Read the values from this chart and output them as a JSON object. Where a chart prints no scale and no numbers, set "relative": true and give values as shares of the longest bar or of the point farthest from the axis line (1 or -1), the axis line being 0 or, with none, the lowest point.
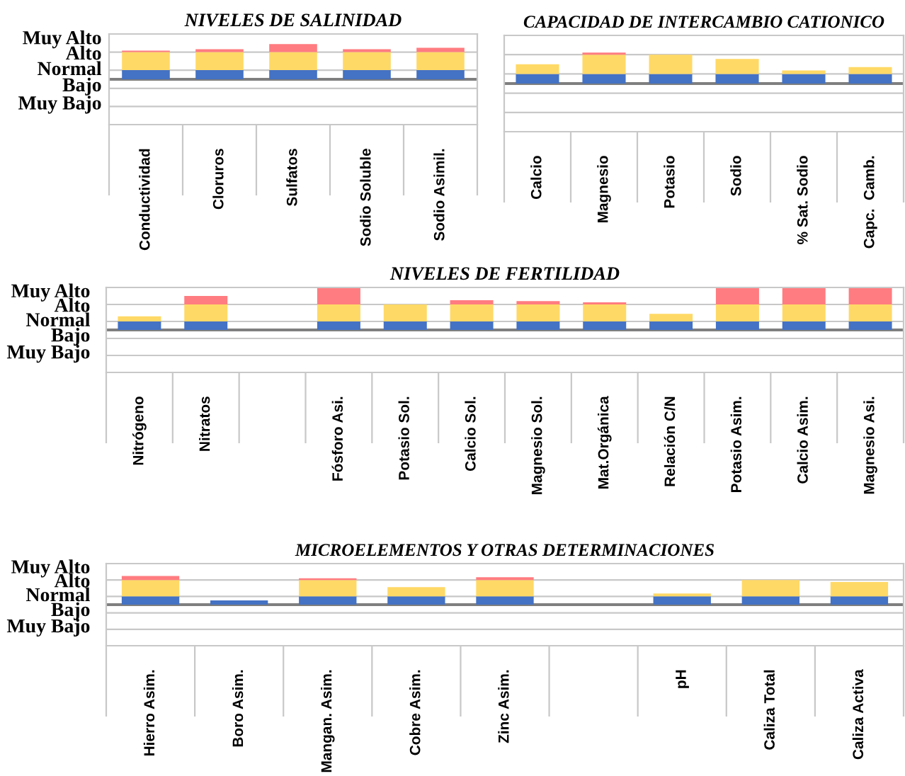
{
  "chart_data": [
    {
      "type": "bar",
      "title": "NIVELES DE SALINIDAD",
      "stacked": true,
      "relative": true,
      "annotations": [
        "Muy Alto",
        "Alto",
        "Normal",
        "Bajo",
        "Muy Bajo"
      ],
      "categories": [
        "Conductividad",
        "Cloruros",
        "Sulfatos",
        "Sodio Soluble",
        "Sodio Asimil."
      ],
      "series": [
        {
          "color": "#4472c4",
          "values": [
            0.26,
            0.26,
            0.26,
            0.26,
            0.26
          ]
        },
        {
          "color": "#ffd966",
          "values": [
            0.51,
            0.51,
            0.51,
            0.51,
            0.51
          ]
        },
        {
          "color": "#ff7c80",
          "values": [
            0.04,
            0.08,
            0.23,
            0.08,
            0.12
          ]
        }
      ],
      "ref_lines": [
        {
          "axis": "y",
          "value": 0.77,
          "color": "#c8c8c8"
        },
        {
          "axis": "y",
          "value": 0.26,
          "color": "#c8c8c8"
        },
        {
          "axis": "y",
          "value": 0,
          "color": "#7f7f7f"
        },
        {
          "axis": "y",
          "value": -0.26,
          "color": "#c8c8c8"
        },
        {
          "axis": "y",
          "value": -0.77,
          "color": "#c8c8c8"
        }
      ]
    },
    {
      "type": "bar",
      "title": "CAPACIDAD DE INTERCAMBIO CATIONICO",
      "stacked": true,
      "relative": true,
      "categories": [
        "Calcio",
        "Magnesio",
        "Potasio",
        "Sodio",
        "% Sat. Sodio",
        "Capc.  Camb."
      ],
      "series": [
        {
          "color": "#4472c4",
          "values": [
            0.31,
            0.31,
            0.31,
            0.31,
            0.31,
            0.31
          ]
        },
        {
          "color": "#ffd966",
          "values": [
            0.31,
            0.62,
            0.62,
            0.48,
            0.11,
            0.22
          ]
        },
        {
          "color": "#ff7c80",
          "values": [
            null,
            0.07,
            null,
            null,
            null,
            null
          ]
        }
      ],
      "ref_lines": [
        {
          "axis": "y",
          "value": 0.93,
          "color": "#c8c8c8"
        },
        {
          "axis": "y",
          "value": 0.31,
          "color": "#c8c8c8"
        },
        {
          "axis": "y",
          "value": 0,
          "color": "#7f7f7f"
        },
        {
          "axis": "y",
          "value": -0.31,
          "color": "#c8c8c8"
        },
        {
          "axis": "y",
          "value": -0.93,
          "color": "#c8c8c8"
        }
      ]
    },
    {
      "type": "bar",
      "title": "NIVELES DE FERTILIDAD",
      "stacked": true,
      "relative": true,
      "annotations": [
        "Muy Alto",
        "Alto",
        "Normal",
        "Bajo",
        "Muy Bajo"
      ],
      "categories": [
        "Nitrógeno",
        "Nitratos",
        null,
        "Fósforo Asi.",
        "Potasio Sol.",
        "Calcio Sol.",
        "Magnesio Sol.",
        "Mat.Orgánica",
        "Relación C/N",
        "Potasio Asim.",
        "Calcio Asim.",
        "Magnesio Asi."
      ],
      "series": [
        {
          "color": "#4472c4",
          "values": [
            0.2,
            0.2,
            null,
            0.2,
            0.2,
            0.2,
            0.2,
            0.2,
            0.2,
            0.2,
            0.2,
            0.2
          ]
        },
        {
          "color": "#ffd966",
          "values": [
            0.12,
            0.4,
            null,
            0.4,
            0.4,
            0.4,
            0.4,
            0.4,
            0.18,
            0.4,
            0.4,
            0.4
          ]
        },
        {
          "color": "#ff7c80",
          "values": [
            null,
            0.2,
            null,
            0.4,
            null,
            0.1,
            0.08,
            0.05,
            null,
            0.4,
            0.4,
            0.4
          ]
        }
      ],
      "ref_lines": [
        {
          "axis": "y",
          "value": 0.6,
          "color": "#c8c8c8"
        },
        {
          "axis": "y",
          "value": 0.2,
          "color": "#c8c8c8"
        },
        {
          "axis": "y",
          "value": 0,
          "color": "#7f7f7f"
        },
        {
          "axis": "y",
          "value": -0.2,
          "color": "#c8c8c8"
        },
        {
          "axis": "y",
          "value": -0.6,
          "color": "#c8c8c8"
        }
      ]
    },
    {
      "type": "bar",
      "title": "MICROELEMENTOS Y OTRAS DETERMINACIONES",
      "stacked": true,
      "relative": true,
      "annotations": [
        "Muy Alto",
        "Alto",
        "Normal",
        "Bajo",
        "Muy Bajo"
      ],
      "categories": [
        "Hierro Asim.",
        "Boro Asim.",
        "Mangan. Asim.",
        "Cobre Asim.",
        "Zinc Asim.",
        null,
        "pH",
        "Caliza Total",
        "Caliza Activa"
      ],
      "series": [
        {
          "color": "#4472c4",
          "values": [
            0.29,
            0.15,
            0.29,
            0.29,
            0.29,
            null,
            0.29,
            0.29,
            0.29
          ]
        },
        {
          "color": "#ffd966",
          "values": [
            0.57,
            null,
            0.57,
            0.32,
            0.57,
            null,
            0.1,
            0.57,
            0.5
          ]
        },
        {
          "color": "#ff7c80",
          "values": [
            0.14,
            null,
            0.06,
            null,
            0.1,
            null,
            null,
            null,
            null
          ]
        }
      ],
      "ref_lines": [
        {
          "axis": "y",
          "value": 0.86,
          "color": "#c8c8c8"
        },
        {
          "axis": "y",
          "value": 0.29,
          "color": "#c8c8c8"
        },
        {
          "axis": "y",
          "value": 0,
          "color": "#7f7f7f"
        },
        {
          "axis": "y",
          "value": -0.29,
          "color": "#c8c8c8"
        },
        {
          "axis": "y",
          "value": -0.86,
          "color": "#c8c8c8"
        }
      ]
    }
  ]
}
